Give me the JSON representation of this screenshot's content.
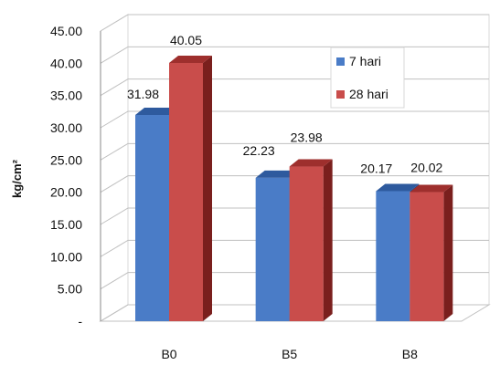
{
  "chart_data": {
    "type": "bar",
    "categories": [
      "B0",
      "B5",
      "B8"
    ],
    "series": [
      {
        "name": "7 hari",
        "values": [
          31.98,
          22.23,
          20.17
        ],
        "value_labels": [
          "31.98",
          "22.23",
          "20.17"
        ]
      },
      {
        "name": "28 hari",
        "values": [
          40.05,
          23.98,
          20.02
        ],
        "value_labels": [
          "40.05",
          "23.98",
          "20.02"
        ]
      }
    ],
    "ylabel": "kg/cm²",
    "xlabel": "",
    "ylim": [
      0,
      45
    ],
    "yticks": [
      0,
      5,
      10,
      15,
      20,
      25,
      30,
      35,
      40,
      45
    ],
    "ytick_labels": [
      "-",
      "5.00",
      "10.00",
      "15.00",
      "20.00",
      "25.00",
      "30.00",
      "35.00",
      "40.00",
      "45.00"
    ],
    "grid": true,
    "legend_position": "top-right",
    "style": "3d-clustered-column",
    "colors": {
      "7 hari": {
        "front": "#4a7cc7",
        "top": "#2e5a9e",
        "side": "#1f4a8a"
      },
      "28 hari": {
        "front": "#c94d4b",
        "top": "#9e2f2d",
        "side": "#7a1f1d"
      },
      "grid": "#c0c0c0",
      "frame": "#d8d8d8"
    }
  }
}
